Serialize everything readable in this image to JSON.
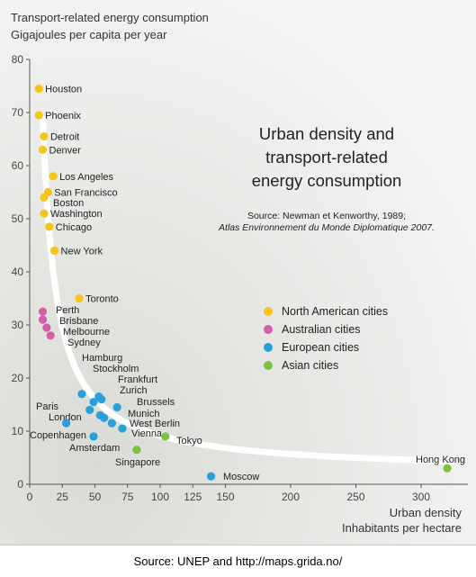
{
  "chart_data": {
    "type": "scatter",
    "title": "Urban density and transport-related energy consumption",
    "title_lines": [
      "Urban density and",
      "transport-related",
      "energy consumption"
    ],
    "source_line_1": "Source: Newman et Kenworthy, 1989;",
    "source_line_2": "Atlas Environnement du Monde Diplomatique 2007.",
    "ylabel_lines": [
      "Transport-related energy consumption",
      "Gigajoules per capita per year"
    ],
    "xlabel_lines": [
      "Urban density",
      "Inhabitants per hectare"
    ],
    "xlim": [
      0,
      325
    ],
    "ylim": [
      0,
      80
    ],
    "xticks": [
      0,
      25,
      50,
      75,
      100,
      125,
      150,
      200,
      250,
      300
    ],
    "yticks": [
      0,
      10,
      20,
      30,
      40,
      50,
      60,
      70,
      80
    ],
    "grid": false,
    "legend_position": "right",
    "trend_curve": true,
    "series": [
      {
        "name": "North American cities",
        "color": "#f5c518",
        "points": [
          {
            "label": "Houston",
            "x": 7,
            "y": 74.5
          },
          {
            "label": "Phoenix",
            "x": 7,
            "y": 69.5
          },
          {
            "label": "Detroit",
            "x": 11,
            "y": 65.5
          },
          {
            "label": "Denver",
            "x": 10,
            "y": 63
          },
          {
            "label": "Los Angeles",
            "x": 18,
            "y": 58
          },
          {
            "label": "San Francisco",
            "x": 14,
            "y": 55
          },
          {
            "label": "Boston",
            "x": 11,
            "y": 54
          },
          {
            "label": "Washington",
            "x": 11,
            "y": 51
          },
          {
            "label": "Chicago",
            "x": 15,
            "y": 48.5
          },
          {
            "label": "New York",
            "x": 19,
            "y": 44
          },
          {
            "label": "Toronto",
            "x": 38,
            "y": 35
          }
        ]
      },
      {
        "name": "Australian cities",
        "color": "#d45ea8",
        "points": [
          {
            "label": "Perth",
            "x": 10,
            "y": 32.5
          },
          {
            "label": "Brisbane",
            "x": 10,
            "y": 31
          },
          {
            "label": "Melbourne",
            "x": 13,
            "y": 29.5
          },
          {
            "label": "Sydney",
            "x": 16,
            "y": 28
          }
        ]
      },
      {
        "name": "European cities",
        "color": "#2a9fd8",
        "points": [
          {
            "label": "Hamburg",
            "x": 40,
            "y": 17
          },
          {
            "label": "Stockholm",
            "x": 53,
            "y": 16.5
          },
          {
            "label": "Frankfurt",
            "x": 55,
            "y": 16
          },
          {
            "label": "Zurich",
            "x": 49,
            "y": 15.5
          },
          {
            "label": "Paris",
            "x": 46,
            "y": 14
          },
          {
            "label": "Brussels",
            "x": 67,
            "y": 14.5
          },
          {
            "label": "Munich",
            "x": 54,
            "y": 13
          },
          {
            "label": "London",
            "x": 57,
            "y": 12.5
          },
          {
            "label": "West Berlin",
            "x": 63,
            "y": 11.5
          },
          {
            "label": "Vienna",
            "x": 71,
            "y": 10.5
          },
          {
            "label": "Copenhagen",
            "x": 28,
            "y": 11.5
          },
          {
            "label": "Amsterdam",
            "x": 49,
            "y": 9
          },
          {
            "label": "Moscow",
            "x": 139,
            "y": 1.5
          }
        ]
      },
      {
        "name": "Asian cities",
        "color": "#7cc242",
        "points": [
          {
            "label": "Tokyo",
            "x": 104,
            "y": 9
          },
          {
            "label": "Singapore",
            "x": 82,
            "y": 6.5
          },
          {
            "label": "Hong Kong",
            "x": 320,
            "y": 3
          }
        ]
      }
    ]
  },
  "footer": {
    "credit": "Source: UNEP and http://maps.grida.no/"
  }
}
